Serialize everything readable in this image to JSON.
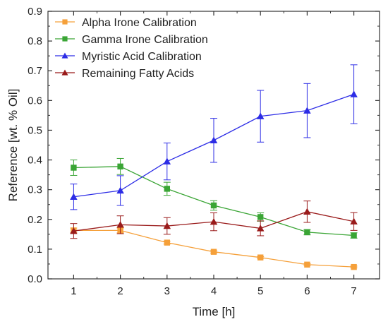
{
  "chart_data": {
    "type": "line",
    "xlabel": "Time [h]",
    "ylabel": "Reference [wt. % Oil]",
    "xlim": [
      0.45,
      7.55
    ],
    "ylim": [
      0,
      0.9
    ],
    "xticks": [
      "1",
      "2",
      "3",
      "4",
      "5",
      "6",
      "7"
    ],
    "yticks": [
      "0.0",
      "0.1",
      "0.2",
      "0.3",
      "0.4",
      "0.5",
      "0.6",
      "0.7",
      "0.8",
      "0.9"
    ],
    "legend_position": "top-left",
    "grid": false,
    "error_bars": true,
    "x": [
      1,
      2,
      3,
      4,
      5,
      6,
      7
    ],
    "series": [
      {
        "name": "Alpha Irone Calibration",
        "color": "#f5a03a",
        "marker": "square",
        "values": [
          0.163,
          0.163,
          0.122,
          0.091,
          0.072,
          0.048,
          0.04
        ],
        "errors": [
          0.008,
          0.008,
          0.005,
          0.004,
          0.003,
          0.003,
          0.003
        ]
      },
      {
        "name": "Gamma Irone Calibration",
        "color": "#3aa535",
        "marker": "square",
        "values": [
          0.374,
          0.378,
          0.303,
          0.247,
          0.208,
          0.157,
          0.146
        ],
        "errors": [
          0.026,
          0.027,
          0.022,
          0.016,
          0.014,
          0.009,
          0.009
        ]
      },
      {
        "name": "Myristic Acid Calibration",
        "color": "#2d2de6",
        "marker": "triangle",
        "values": [
          0.276,
          0.297,
          0.395,
          0.466,
          0.547,
          0.566,
          0.621
        ],
        "errors": [
          0.043,
          0.05,
          0.062,
          0.074,
          0.087,
          0.091,
          0.099
        ]
      },
      {
        "name": "Remaining Fatty Acids",
        "color": "#9a1b1b",
        "marker": "triangle",
        "values": [
          0.161,
          0.182,
          0.178,
          0.192,
          0.17,
          0.226,
          0.193
        ],
        "errors": [
          0.025,
          0.03,
          0.028,
          0.03,
          0.025,
          0.036,
          0.03
        ]
      }
    ]
  }
}
